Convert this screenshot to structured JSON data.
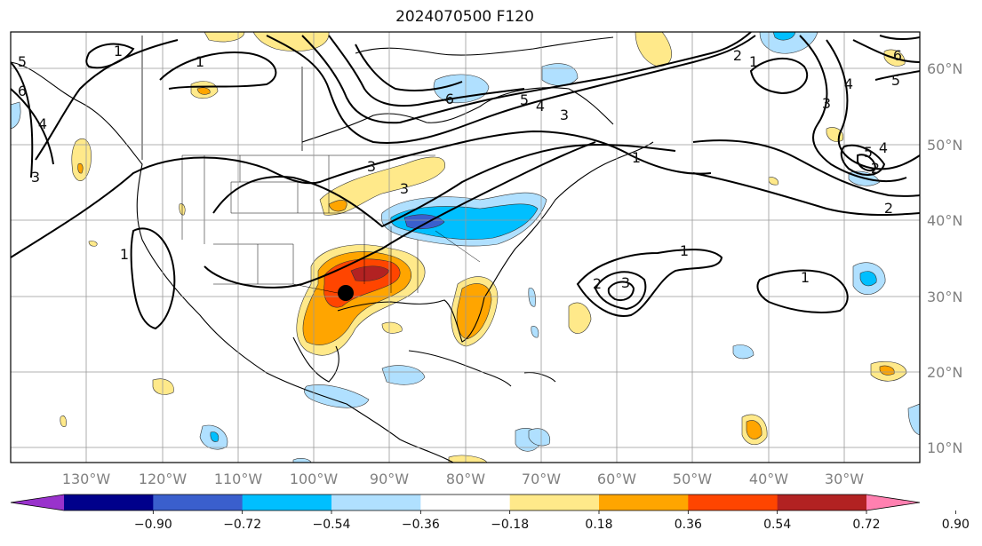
{
  "title": "2024070500 F120",
  "lon_ticks": [
    "130°W",
    "120°W",
    "110°W",
    "100°W",
    "90°W",
    "80°W",
    "70°W",
    "60°W",
    "50°W",
    "40°W",
    "30°W"
  ],
  "lat_ticks": [
    "60°N",
    "50°N",
    "40°N",
    "30°N",
    "20°N",
    "10°N"
  ],
  "colorbar": {
    "colors": [
      "#9932cc",
      "#00008b",
      "#3a5fcd",
      "#00bfff",
      "#b0e0ff",
      "#ffffff",
      "#ffe98a",
      "#ffa500",
      "#ff4500",
      "#b22222",
      "#ff80b0"
    ],
    "labels": [
      "−0.90",
      "−0.72",
      "−0.54",
      "−0.36",
      "−0.18",
      "0.18",
      "0.36",
      "0.54",
      "0.72",
      "0.90"
    ]
  },
  "contour_labels": [
    "1",
    "1",
    "1",
    "2",
    "3",
    "3",
    "4",
    "4",
    "5",
    "5",
    "6",
    "6",
    "5",
    "4",
    "3",
    "2",
    "1",
    "1",
    "2",
    "3",
    "1",
    "1",
    "4",
    "3",
    "6",
    "5",
    "2",
    "3"
  ],
  "marker": "storm-position-dot"
}
